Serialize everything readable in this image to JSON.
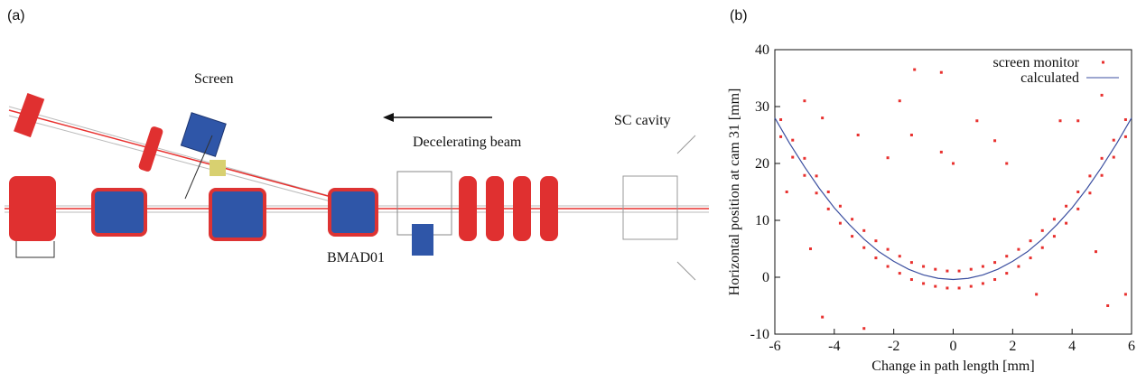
{
  "panel_a": {
    "label": "(a)",
    "screen": "Screen",
    "beam": "Decelerating beam",
    "cavity": "SC cavity",
    "magnet": "BMAD01"
  },
  "chart_data": {
    "type": "scatter",
    "panel_label": "(b)",
    "x_label": "Change in path length [mm]",
    "y_label": "Horizontal position at cam 31 [mm]",
    "xlim": [
      -6,
      6
    ],
    "xticks": [
      -6,
      -4,
      -2,
      0,
      2,
      4,
      6
    ],
    "ylim": [
      -10,
      40
    ],
    "yticks": [
      -10,
      0,
      10,
      20,
      30,
      40
    ],
    "legend": "upper right",
    "series": [
      {
        "name": "screen monitor",
        "color": "#e8312f",
        "kind": "points",
        "x": [
          -5.8,
          -5.8,
          -5.4,
          -5.4,
          -5.0,
          -5.0,
          -4.6,
          -4.6,
          -4.2,
          -4.2,
          -3.8,
          -3.8,
          -3.4,
          -3.4,
          -3.0,
          -3.0,
          -2.6,
          -2.6,
          -2.2,
          -2.2,
          -1.8,
          -1.8,
          -1.4,
          -1.4,
          -1.0,
          -1.0,
          -0.6,
          -0.6,
          -0.2,
          -0.2,
          0.2,
          0.2,
          0.6,
          0.6,
          1.0,
          1.0,
          1.4,
          1.4,
          1.8,
          1.8,
          2.2,
          2.2,
          2.6,
          2.6,
          3.0,
          3.0,
          3.4,
          3.4,
          3.8,
          3.8,
          4.2,
          4.2,
          4.6,
          4.6,
          5.0,
          5.0,
          5.4,
          5.4,
          5.8,
          5.8,
          -5.6,
          -5.0,
          -4.8,
          -4.4,
          -4.4,
          -3.2,
          -3.0,
          -2.2,
          -1.8,
          -1.4,
          -1.3,
          -0.4,
          -0.4,
          0.0,
          0.8,
          1.4,
          1.8,
          2.8,
          3.6,
          4.2,
          4.8,
          5.0,
          5.2,
          5.8
        ],
        "values": [
          27.7,
          24.7,
          24.1,
          21.1,
          20.9,
          17.9,
          17.8,
          14.8,
          15.0,
          12.0,
          12.5,
          9.5,
          10.2,
          7.2,
          8.2,
          5.2,
          6.4,
          3.4,
          4.9,
          1.9,
          3.7,
          0.7,
          2.6,
          -0.4,
          1.9,
          -1.1,
          1.4,
          -1.6,
          1.1,
          -1.9,
          1.1,
          -1.9,
          1.4,
          -1.6,
          1.9,
          -1.1,
          2.6,
          -0.4,
          3.7,
          0.7,
          4.9,
          1.9,
          6.4,
          3.4,
          8.2,
          5.2,
          10.2,
          7.2,
          12.5,
          9.5,
          15.0,
          12.0,
          17.8,
          14.8,
          20.9,
          17.9,
          24.1,
          21.1,
          27.7,
          24.7,
          15,
          31,
          5,
          -7,
          28,
          25,
          -9,
          21,
          31,
          25,
          36.5,
          36,
          22,
          20,
          27.5,
          24,
          20,
          -3,
          27.5,
          27.5,
          4.5,
          32,
          -5,
          -3
        ]
      },
      {
        "name": "calculated",
        "color": "#3b4fa0",
        "kind": "line",
        "x": [
          -6,
          -5.5,
          -5,
          -4.5,
          -4,
          -3.5,
          -3,
          -2.5,
          -2,
          -1.5,
          -1,
          -0.5,
          0,
          0.5,
          1,
          1.5,
          2,
          2.5,
          3,
          3.5,
          4,
          4.5,
          5,
          5.5,
          6
        ],
        "values": [
          28.0,
          23.5,
          19.4,
          15.6,
          12.2,
          9.3,
          6.7,
          4.5,
          2.8,
          1.4,
          0.4,
          -0.2,
          -0.4,
          -0.2,
          0.4,
          1.4,
          2.8,
          4.5,
          6.7,
          9.3,
          12.2,
          15.6,
          19.4,
          23.5,
          28.0
        ]
      }
    ]
  }
}
